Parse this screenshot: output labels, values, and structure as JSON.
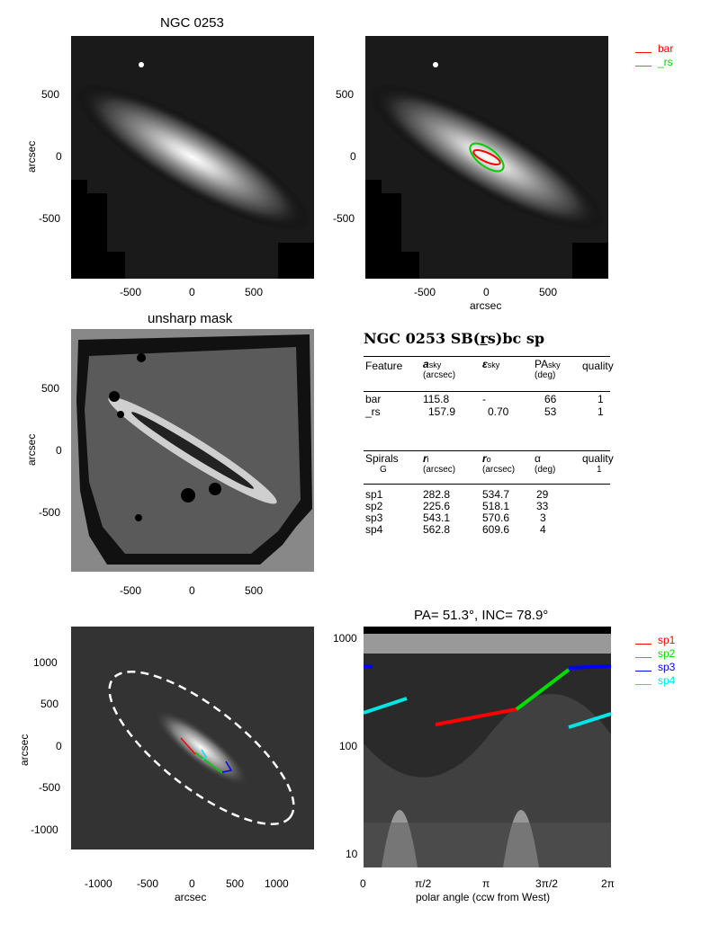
{
  "panel1": {
    "title": "NGC 0253",
    "ylabel": "arcsec",
    "yticks": [
      "500",
      "0",
      "-500"
    ],
    "xticks": [
      "-500",
      "0",
      "500"
    ]
  },
  "panel2": {
    "xlabel": "arcsec",
    "yticks": [
      "500",
      "0",
      "-500"
    ],
    "xticks": [
      "-500",
      "0",
      "500"
    ],
    "legend": [
      {
        "label": "bar",
        "color": "#ff0000"
      },
      {
        "label": "_rs",
        "color": "#00cc00"
      }
    ]
  },
  "panel3": {
    "title": "unsharp mask",
    "ylabel": "arcsec",
    "yticks": [
      "500",
      "0",
      "-500"
    ],
    "xticks": [
      "-500",
      "0",
      "500"
    ]
  },
  "table": {
    "heading": "NGC 0253  SB(rs)bc sp",
    "heading_pre": "NGC 0253  SB(",
    "heading_u": "r",
    "heading_post": "s)bc sp",
    "features": {
      "headers": [
        "Feature",
        "a",
        "sky",
        "(arcsec)",
        "ε",
        "sky",
        "PA",
        "sky",
        "(deg)",
        "quality"
      ],
      "rows": [
        [
          "bar",
          "115.8",
          "-",
          "66",
          "1"
        ],
        [
          "_rs",
          "157.9",
          "0.70",
          "53",
          "1"
        ]
      ]
    },
    "spirals": {
      "headers": [
        "Spirals",
        "G",
        "r",
        "i",
        "(arcsec)",
        "r",
        "o",
        "(arcsec)",
        "α",
        "(deg)",
        "quality",
        "1"
      ],
      "rows": [
        [
          "sp1",
          "282.8",
          "534.7",
          "29"
        ],
        [
          "sp2",
          "225.6",
          "518.1",
          "33"
        ],
        [
          "sp3",
          "543.1",
          "570.6",
          "3"
        ],
        [
          "sp4",
          "562.8",
          "609.6",
          "4"
        ]
      ]
    }
  },
  "panel5": {
    "ylabel": "arcsec",
    "xlabel": "arcsec",
    "yticks": [
      "1000",
      "500",
      "0",
      "-500",
      "-1000"
    ],
    "xticks": [
      "-1000",
      "-500",
      "0",
      "500",
      "1000"
    ]
  },
  "panel6": {
    "title": "PA=  51.3°, INC=  78.9°",
    "xlabel": "polar angle (ccw from West)",
    "yticks": [
      "1000",
      "100",
      "10"
    ],
    "xticks": [
      "0",
      "π/2",
      "π",
      "3π/2",
      "2π"
    ],
    "legend": [
      {
        "label": "sp1",
        "color": "#ff0000"
      },
      {
        "label": "sp2",
        "color": "#00dd00"
      },
      {
        "label": "sp3",
        "color": "#0000ff"
      },
      {
        "label": "sp4",
        "color": "#00e5e5"
      }
    ]
  }
}
